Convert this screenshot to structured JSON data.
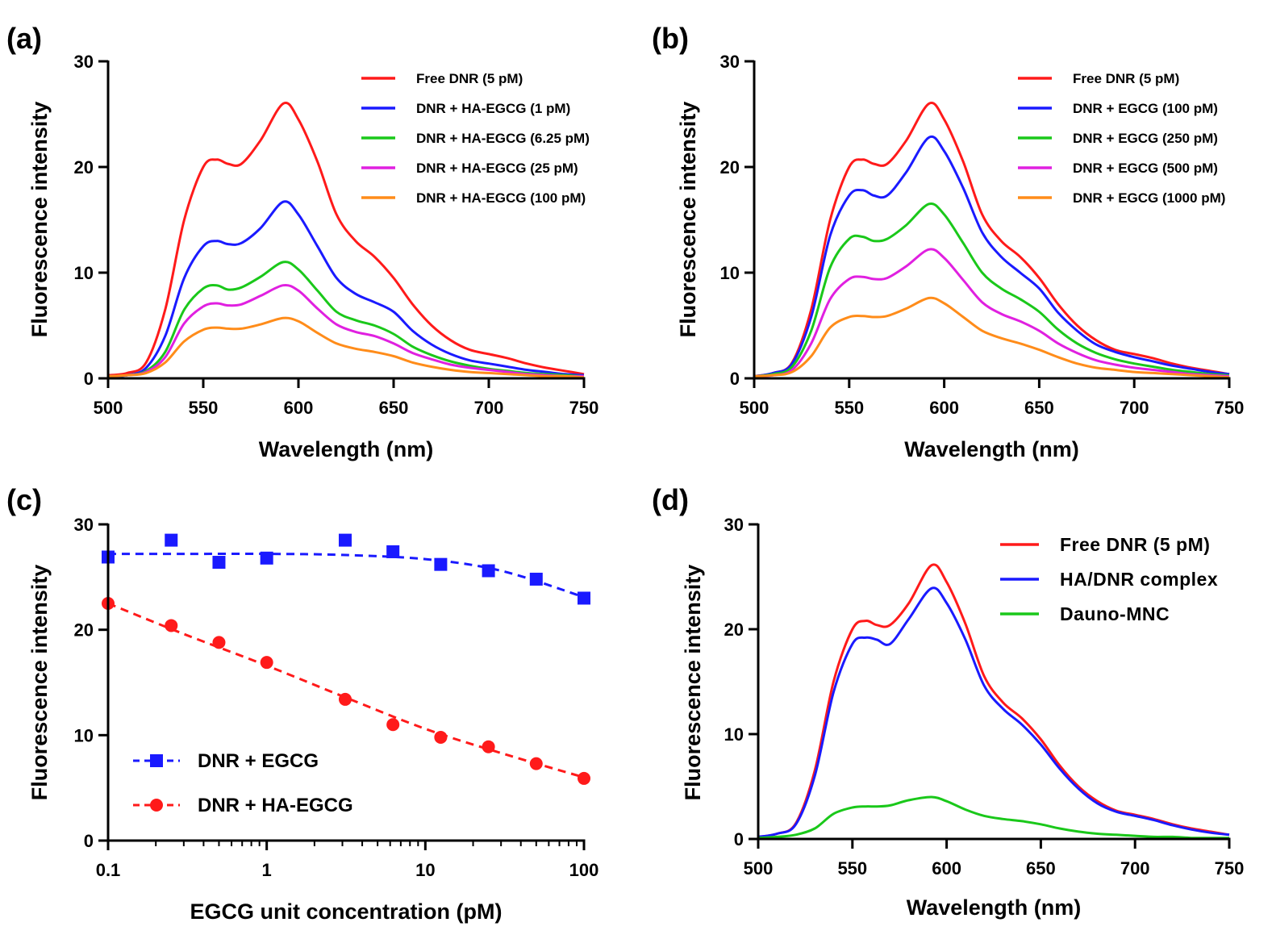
{
  "chart_data": [
    {
      "panel": "(a)",
      "type": "line",
      "xlabel": "Wavelength (nm)",
      "ylabel": "Fluorescence intensity",
      "xlim": [
        500,
        750
      ],
      "ylim": [
        0,
        30
      ],
      "xticks": [
        500,
        550,
        600,
        650,
        700,
        750
      ],
      "yticks": [
        0,
        10,
        20,
        30
      ],
      "legend_position": "top-right",
      "x": [
        500,
        510,
        520,
        530,
        540,
        550,
        557,
        563,
        570,
        580,
        592,
        600,
        610,
        620,
        630,
        640,
        650,
        660,
        670,
        680,
        690,
        700,
        710,
        720,
        730,
        740,
        750
      ],
      "series": [
        {
          "name": "Free DNR (5 pM)",
          "color": "#ff1a1a",
          "values": [
            0.3,
            0.5,
            1.5,
            6.5,
            15,
            20,
            20.7,
            20.3,
            20.3,
            22.5,
            26,
            24.5,
            20.5,
            15.5,
            13,
            11.5,
            9.5,
            7,
            5,
            3.6,
            2.7,
            2.3,
            1.9,
            1.4,
            1.0,
            0.7,
            0.4
          ]
        },
        {
          "name": "DNR + HA-EGCG (1 pM)",
          "color": "#1a1aff",
          "values": [
            0.2,
            0.3,
            1.0,
            4,
            9.5,
            12.5,
            13,
            12.7,
            12.8,
            14.2,
            16.7,
            15.5,
            12.5,
            9.5,
            8,
            7.2,
            6.3,
            4.5,
            3.2,
            2.3,
            1.7,
            1.4,
            1.1,
            0.8,
            0.6,
            0.4,
            0.3
          ]
        },
        {
          "name": "DNR + HA-EGCG (6.25 pM)",
          "color": "#1ac81a",
          "values": [
            0.2,
            0.3,
            0.7,
            2.5,
            6.5,
            8.5,
            8.8,
            8.4,
            8.6,
            9.6,
            11,
            10.3,
            8.3,
            6.3,
            5.5,
            5,
            4.2,
            3,
            2.2,
            1.6,
            1.2,
            0.9,
            0.7,
            0.5,
            0.4,
            0.3,
            0.2
          ]
        },
        {
          "name": "DNR + HA-EGCG (25 pM)",
          "color": "#e020e0",
          "values": [
            0.2,
            0.3,
            0.6,
            2,
            5.2,
            6.8,
            7.1,
            6.9,
            7,
            7.8,
            8.8,
            8.3,
            6.6,
            5.1,
            4.4,
            4,
            3.3,
            2.4,
            1.8,
            1.3,
            1.0,
            0.8,
            0.6,
            0.4,
            0.3,
            0.2,
            0.2
          ]
        },
        {
          "name": "DNR + HA-EGCG (100 pM)",
          "color": "#ff8c1a",
          "values": [
            0.2,
            0.3,
            0.5,
            1.5,
            3.5,
            4.6,
            4.8,
            4.7,
            4.7,
            5.1,
            5.7,
            5.4,
            4.3,
            3.3,
            2.8,
            2.5,
            2.1,
            1.5,
            1.1,
            0.8,
            0.6,
            0.5,
            0.4,
            0.3,
            0.2,
            0.2,
            0.1
          ]
        }
      ]
    },
    {
      "panel": "(b)",
      "type": "line",
      "xlabel": "Wavelength (nm)",
      "ylabel": "Fluorescence intensity",
      "xlim": [
        500,
        750
      ],
      "ylim": [
        0,
        30
      ],
      "xticks": [
        500,
        550,
        600,
        650,
        700,
        750
      ],
      "yticks": [
        0,
        10,
        20,
        30
      ],
      "legend_position": "top-right",
      "x": [
        500,
        510,
        520,
        530,
        540,
        550,
        557,
        563,
        570,
        580,
        592,
        600,
        610,
        620,
        630,
        640,
        650,
        660,
        670,
        680,
        690,
        700,
        710,
        720,
        730,
        740,
        750
      ],
      "series": [
        {
          "name": "Free DNR (5 pM)",
          "color": "#ff1a1a",
          "values": [
            0.2,
            0.5,
            1.5,
            6.5,
            15,
            20,
            20.7,
            20.3,
            20.3,
            22.5,
            26,
            24.5,
            20.5,
            15.5,
            13,
            11.5,
            9.5,
            7,
            5,
            3.6,
            2.7,
            2.3,
            1.9,
            1.4,
            1.0,
            0.7,
            0.4
          ]
        },
        {
          "name": "DNR + EGCG (100 pM)",
          "color": "#1a1aff",
          "values": [
            0.2,
            0.5,
            1.4,
            5.8,
            13.5,
            17.3,
            17.8,
            17.3,
            17.3,
            19.5,
            22.8,
            21.5,
            18,
            13.8,
            11.5,
            10,
            8.5,
            6.2,
            4.5,
            3.2,
            2.5,
            2.0,
            1.6,
            1.2,
            0.9,
            0.6,
            0.4
          ]
        },
        {
          "name": "DNR + EGCG (250 pM)",
          "color": "#1ac81a",
          "values": [
            0.2,
            0.4,
            1.1,
            4.5,
            10.5,
            13.2,
            13.4,
            13,
            13.2,
            14.5,
            16.5,
            15.5,
            12.8,
            10,
            8.5,
            7.5,
            6.3,
            4.6,
            3.3,
            2.4,
            1.8,
            1.4,
            1.1,
            0.8,
            0.6,
            0.4,
            0.3
          ]
        },
        {
          "name": "DNR + EGCG (500 pM)",
          "color": "#e020e0",
          "values": [
            0.2,
            0.3,
            0.8,
            3.3,
            7.5,
            9.4,
            9.6,
            9.4,
            9.5,
            10.6,
            12.2,
            11.4,
            9.3,
            7.2,
            6.1,
            5.4,
            4.5,
            3.3,
            2.4,
            1.7,
            1.3,
            1.0,
            0.8,
            0.6,
            0.4,
            0.3,
            0.2
          ]
        },
        {
          "name": "DNR + EGCG (1000 pM)",
          "color": "#ff8c1a",
          "values": [
            0.2,
            0.3,
            0.6,
            2.1,
            4.8,
            5.8,
            5.9,
            5.8,
            5.9,
            6.6,
            7.6,
            7.1,
            5.8,
            4.5,
            3.8,
            3.3,
            2.7,
            2.0,
            1.4,
            1.0,
            0.8,
            0.6,
            0.5,
            0.4,
            0.3,
            0.2,
            0.1
          ]
        }
      ]
    },
    {
      "panel": "(c)",
      "type": "scatter",
      "xscale": "log",
      "xlabel": "EGCG unit concentration (pM)",
      "ylabel": "Fluorescence intensity",
      "xlim": [
        0.1,
        100
      ],
      "ylim": [
        0,
        30
      ],
      "xticks": [
        0.1,
        1,
        10,
        100
      ],
      "xtick_labels": [
        "0.1",
        "1",
        "10",
        "100"
      ],
      "yticks": [
        0,
        10,
        20,
        30
      ],
      "legend_position": "bottom-left",
      "series": [
        {
          "name": "DNR + EGCG",
          "marker": "square",
          "color": "#1a1aff",
          "x": [
            0.1,
            0.25,
            0.5,
            1,
            3.125,
            6.25,
            12.5,
            25,
            50,
            100
          ],
          "y": [
            26.9,
            28.5,
            26.4,
            26.8,
            28.5,
            27.4,
            26.2,
            25.6,
            24.8,
            23.0
          ],
          "fit_x": [
            0.1,
            0.3,
            1,
            3,
            10,
            30,
            100
          ],
          "fit_y": [
            27.2,
            27.2,
            27.2,
            27.1,
            26.7,
            25.6,
            23.1
          ]
        },
        {
          "name": "DNR + HA-EGCG",
          "marker": "circle",
          "color": "#ff1a1a",
          "x": [
            0.1,
            0.25,
            0.5,
            1,
            3.125,
            6.25,
            12.5,
            25,
            50,
            100
          ],
          "y": [
            22.5,
            20.4,
            18.8,
            16.9,
            13.4,
            11.0,
            9.8,
            8.9,
            7.3,
            5.9
          ],
          "fit_x": [
            0.1,
            0.3,
            1,
            3,
            10,
            30,
            100
          ],
          "fit_y": [
            22.5,
            19.6,
            16.6,
            13.7,
            10.6,
            8.3,
            6.0
          ]
        }
      ]
    },
    {
      "panel": "(d)",
      "type": "line",
      "xlabel": "Wavelength (nm)",
      "ylabel": "Fluorescence intensity",
      "xlim": [
        500,
        750
      ],
      "ylim": [
        0,
        30
      ],
      "xticks": [
        500,
        550,
        600,
        650,
        700,
        750
      ],
      "yticks": [
        0,
        10,
        20,
        30
      ],
      "legend_position": "top-right",
      "x": [
        500,
        510,
        520,
        530,
        540,
        550,
        557,
        563,
        570,
        580,
        592,
        600,
        610,
        620,
        630,
        640,
        650,
        660,
        670,
        680,
        690,
        700,
        710,
        720,
        730,
        740,
        750
      ],
      "series": [
        {
          "name": "Free DNR (5 pM)",
          "color": "#ff1a1a",
          "values": [
            0.2,
            0.5,
            1.5,
            6.5,
            15,
            20,
            20.8,
            20.4,
            20.4,
            22.5,
            26.1,
            24.5,
            20.5,
            15.5,
            13,
            11.5,
            9.5,
            7,
            5,
            3.6,
            2.7,
            2.3,
            1.9,
            1.4,
            1.0,
            0.7,
            0.4
          ]
        },
        {
          "name": "HA/DNR complex",
          "color": "#1a1aff",
          "values": [
            0.2,
            0.5,
            1.4,
            6.0,
            14,
            18.6,
            19.2,
            19,
            18.6,
            21,
            23.9,
            22.5,
            19,
            14.6,
            12.4,
            10.9,
            9,
            6.7,
            4.8,
            3.4,
            2.6,
            2.2,
            1.8,
            1.3,
            0.9,
            0.6,
            0.4
          ]
        },
        {
          "name": "Dauno-MNC",
          "color": "#1ac81a",
          "values": [
            0.1,
            0.2,
            0.4,
            1.0,
            2.4,
            3.0,
            3.1,
            3.1,
            3.2,
            3.7,
            4.0,
            3.6,
            2.8,
            2.2,
            1.9,
            1.7,
            1.4,
            1.0,
            0.7,
            0.5,
            0.4,
            0.3,
            0.2,
            0.2,
            0.1,
            0.1,
            0.1
          ]
        }
      ]
    }
  ]
}
